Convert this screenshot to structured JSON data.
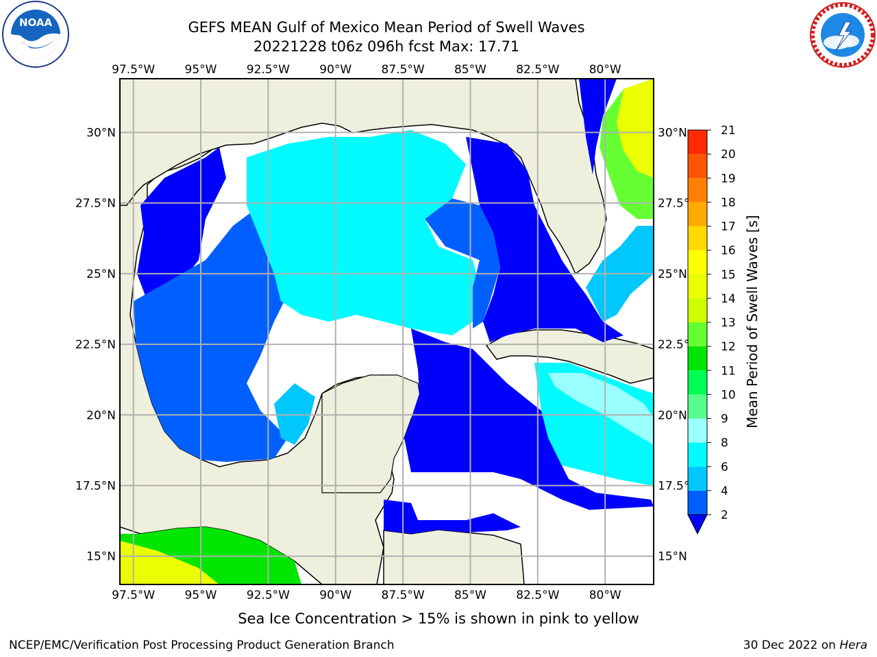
{
  "header": {
    "title_line1": "GEFS MEAN Gulf of Mexico Mean Period of Swell Waves",
    "title_line2": "20221228 t06z 096h fcst   Max: 17.71"
  },
  "logos": {
    "left": {
      "text_top": "NOAA",
      "ring_text": "NATIONAL OCEANIC AND ATMOSPHERIC ADMINISTRATION · U.S. DEPARTMENT OF COMMERCE"
    },
    "right": {
      "ring_text": "NATIONAL WEATHER SERVICE"
    }
  },
  "map": {
    "lon_labels": [
      "97.5°W",
      "95°W",
      "92.5°W",
      "90°W",
      "87.5°W",
      "85°W",
      "82.5°W",
      "80°W"
    ],
    "lat_labels": [
      "30°N",
      "27.5°N",
      "25°N",
      "22.5°N",
      "20°N",
      "17.5°N",
      "15°N"
    ],
    "lon_ticks": [
      -97.5,
      -95,
      -92.5,
      -90,
      -87.5,
      -85,
      -82.5,
      -80
    ],
    "lat_ticks": [
      30,
      27.5,
      25,
      22.5,
      20,
      17.5,
      15
    ],
    "lon_range": [
      -98,
      -78.2
    ],
    "lat_range": [
      14,
      31.9
    ],
    "land_color": "#efefdd",
    "grid_color": "#b0b0b0"
  },
  "colorbar": {
    "label": "Mean Period of Swell Waves [s]",
    "tick_labels": [
      "2",
      "4",
      "6",
      "8",
      "9",
      "10",
      "11",
      "12",
      "13",
      "14",
      "15",
      "16",
      "17",
      "18",
      "19",
      "20",
      "21"
    ],
    "colors": [
      "#0000ff",
      "#0060ff",
      "#00c8ff",
      "#00fbff",
      "#99ffff",
      "#55ff8c",
      "#00ff55",
      "#00e600",
      "#66ff33",
      "#ccff00",
      "#eaff00",
      "#ffff00",
      "#ffda00",
      "#ffaa00",
      "#ff8000",
      "#ff5500",
      "#ff2a00",
      "#ff0000"
    ]
  },
  "note": "Sea Ice Concentration > 15% is shown in pink to yellow",
  "footer": {
    "left": "NCEP/EMC/Verification Post Processing Product Generation Branch",
    "right_prefix": "30 Dec 2022 on ",
    "right_host": "Hera"
  }
}
